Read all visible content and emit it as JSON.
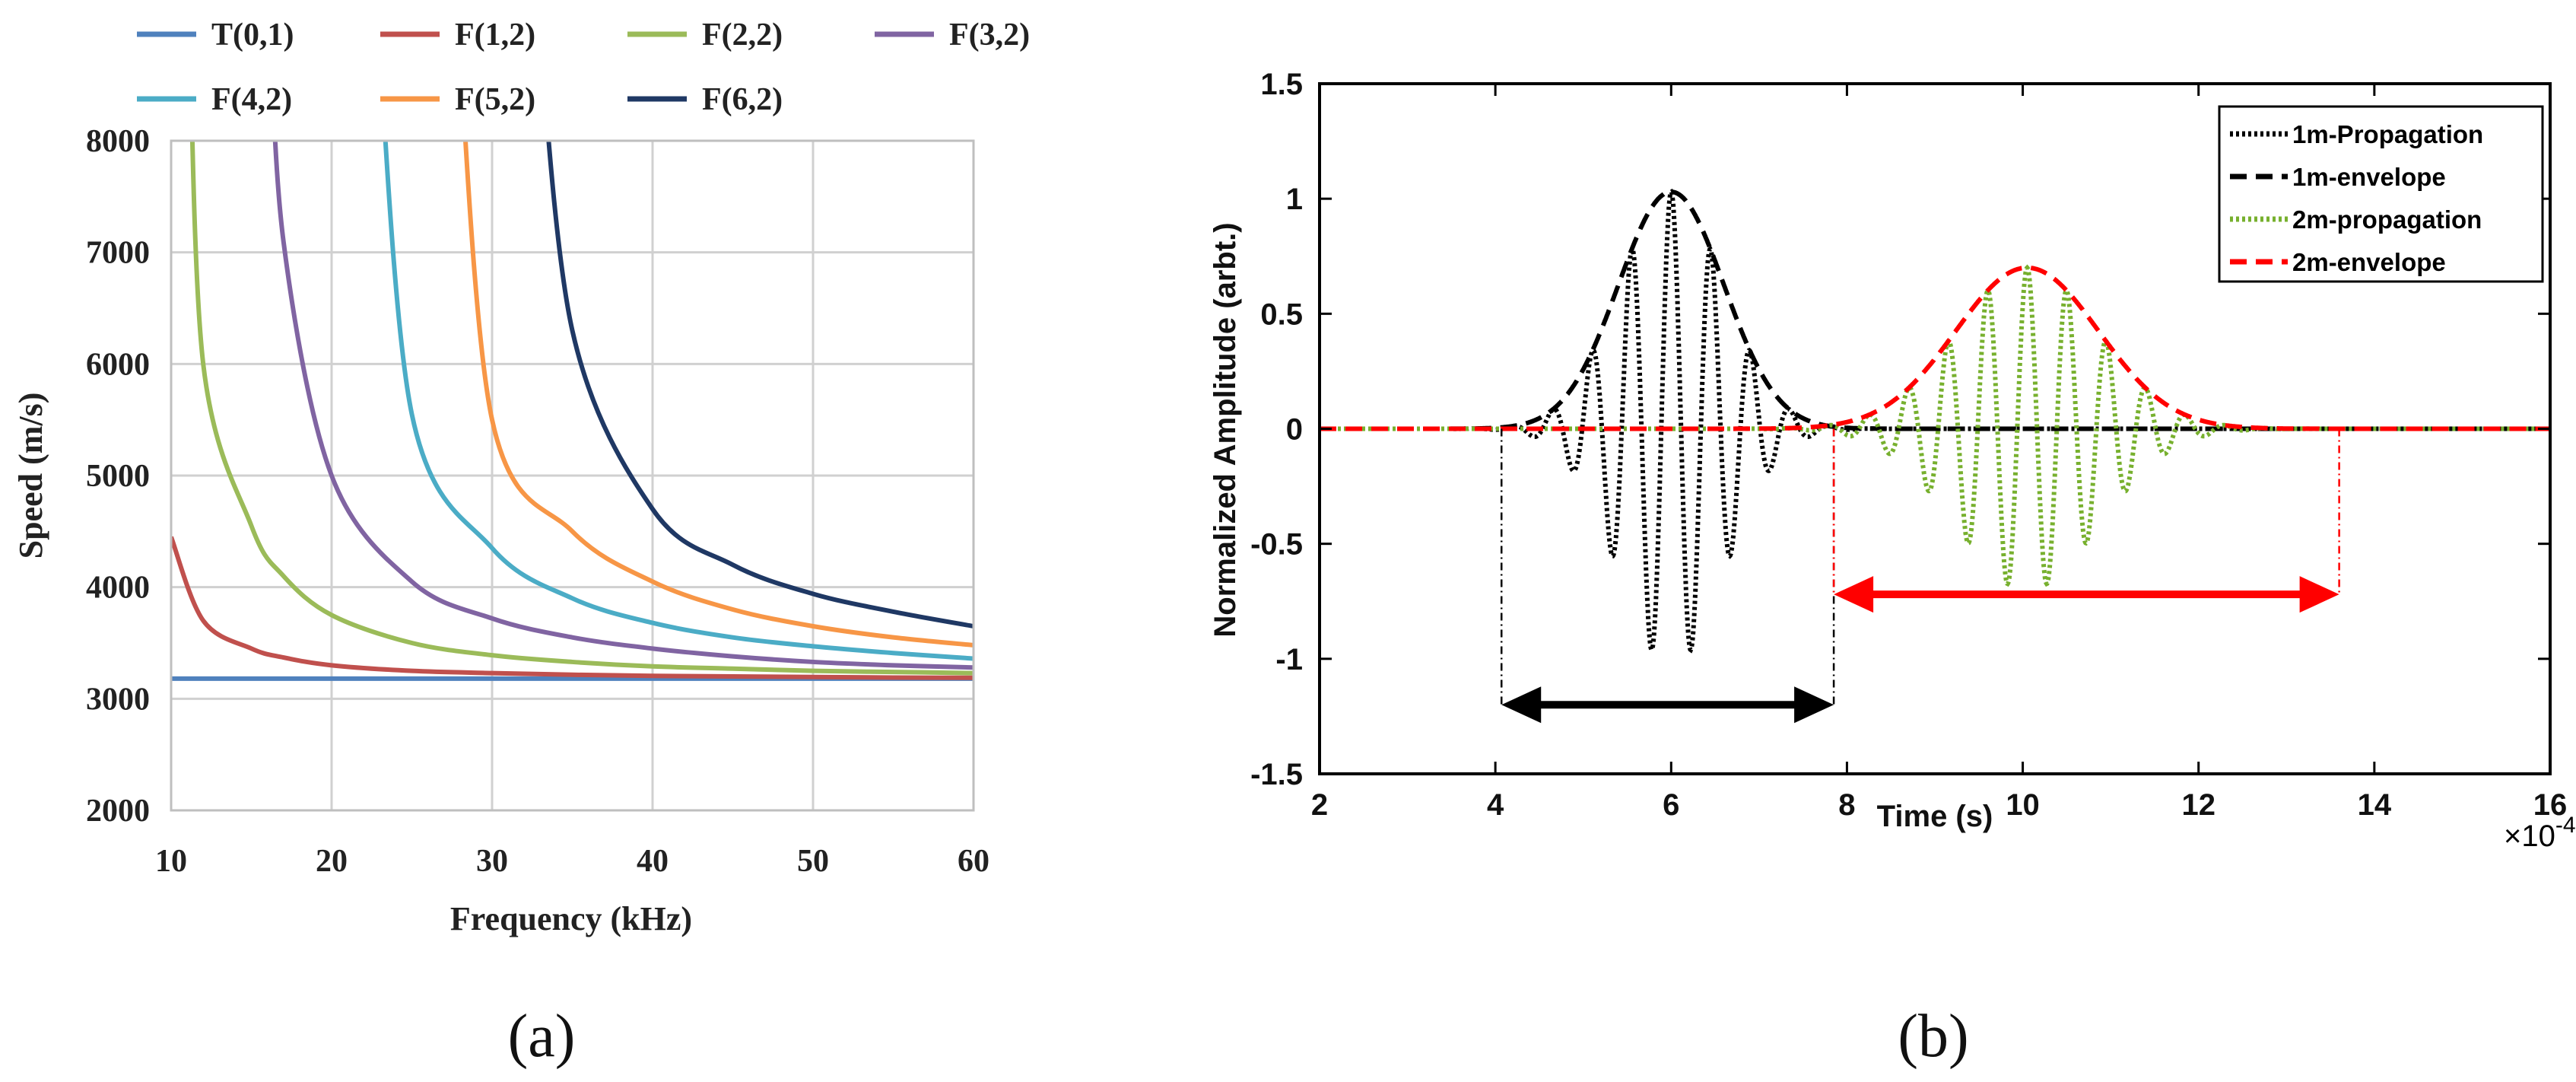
{
  "figure": {
    "panel_a_label": "(a)",
    "panel_b_label": "(b)"
  },
  "chart_data": [
    {
      "type": "line",
      "panel": "a",
      "title": "",
      "xlabel": "Frequency (kHz)",
      "ylabel": "Speed (m/s)",
      "xlim": [
        10,
        60
      ],
      "ylim": [
        2000,
        8000
      ],
      "xticks": [
        10,
        20,
        30,
        40,
        50,
        60
      ],
      "yticks": [
        2000,
        3000,
        4000,
        5000,
        6000,
        7000,
        8000
      ],
      "grid": true,
      "legend_position": "top",
      "x": [
        10,
        12,
        15,
        17,
        20,
        25,
        30,
        35,
        40,
        45,
        50,
        55,
        60
      ],
      "series": [
        {
          "name": "T(0,1)",
          "color": "#4f81bd",
          "values": [
            3180,
            3180,
            3180,
            3180,
            3180,
            3180,
            3180,
            3180,
            3180,
            3180,
            3180,
            3180,
            3180
          ]
        },
        {
          "name": "F(1,2)",
          "color": "#c0504d",
          "values": [
            4450,
            3700,
            3450,
            3370,
            3300,
            3250,
            3230,
            3215,
            3205,
            3200,
            3195,
            3190,
            3188
          ]
        },
        {
          "name": "F(2,2)",
          "color": "#9bbb59",
          "values": [
            null,
            6000,
            4550,
            4100,
            3750,
            3500,
            3390,
            3330,
            3290,
            3270,
            3250,
            3240,
            3230
          ]
        },
        {
          "name": "F(3,2)",
          "color": "#8064a2",
          "values": [
            null,
            null,
            null,
            7100,
            5000,
            4050,
            3720,
            3550,
            3450,
            3380,
            3330,
            3300,
            3280
          ]
        },
        {
          "name": "F(4,2)",
          "color": "#4bacc6",
          "values": [
            null,
            null,
            null,
            null,
            null,
            5550,
            4350,
            3900,
            3680,
            3550,
            3470,
            3410,
            3360
          ]
        },
        {
          "name": "F(5,2)",
          "color": "#f79646",
          "values": [
            null,
            null,
            null,
            null,
            null,
            null,
            5500,
            4500,
            4050,
            3800,
            3650,
            3550,
            3480
          ]
        },
        {
          "name": "F(6,2)",
          "color": "#1f3864",
          "values": [
            null,
            null,
            null,
            null,
            null,
            null,
            null,
            6300,
            4700,
            4200,
            3940,
            3780,
            3650
          ]
        }
      ]
    },
    {
      "type": "line",
      "panel": "b",
      "title": "",
      "xlabel": "Time (s)",
      "ylabel": "Normalized Amplitude (arbt.)",
      "x_exponent_label": "×10",
      "x_exponent_power": "-4",
      "xlim": [
        2,
        16
      ],
      "ylim": [
        -1.5,
        1.5
      ],
      "xticks": [
        2,
        4,
        6,
        8,
        10,
        12,
        14,
        16
      ],
      "yticks": [
        -1.5,
        -1,
        -0.5,
        0,
        0.5,
        1,
        1.5
      ],
      "yticklabels": [
        "-1.5",
        "-1",
        "-0.5",
        "0",
        "0.5",
        "1",
        "1.5"
      ],
      "grid": false,
      "legend_position": "top-right",
      "series": [
        {
          "name": "1m-Propagation",
          "color": "#000000",
          "style": "dotted",
          "kind": "carrier",
          "center": 6.0,
          "amplitude": 1.03,
          "width": 0.85,
          "carrier_period": 0.45
        },
        {
          "name": "1m-envelope",
          "color": "#000000",
          "style": "dashed",
          "kind": "envelope",
          "center": 6.0,
          "amplitude": 1.03,
          "width": 0.85
        },
        {
          "name": "2m-propagation",
          "color": "#77b02e",
          "style": "dotted",
          "kind": "carrier",
          "center": 10.05,
          "amplitude": 0.7,
          "width": 1.15,
          "carrier_period": 0.45
        },
        {
          "name": "2m-envelope",
          "color": "#ff0000",
          "style": "dashed",
          "kind": "envelope",
          "center": 10.05,
          "amplitude": 0.7,
          "width": 1.15
        }
      ],
      "annotations": [
        {
          "type": "double-arrow",
          "color": "#000000",
          "from_x": 4.07,
          "to_x": 7.85,
          "y": -1.2
        },
        {
          "type": "double-arrow",
          "color": "#ff0000",
          "from_x": 7.85,
          "to_x": 13.6,
          "y": -0.72
        },
        {
          "type": "guide-line",
          "color": "#000000",
          "x": 4.07,
          "y_from": 0,
          "y_to": -1.2
        },
        {
          "type": "guide-line",
          "color": "#000000",
          "x": 7.85,
          "y_from": 0,
          "y_to": -1.2
        },
        {
          "type": "guide-line",
          "color": "#ff0000",
          "x": 7.85,
          "y_from": 0,
          "y_to": -0.72
        },
        {
          "type": "guide-line",
          "color": "#ff0000",
          "x": 13.6,
          "y_from": 0,
          "y_to": -0.72
        }
      ]
    }
  ]
}
